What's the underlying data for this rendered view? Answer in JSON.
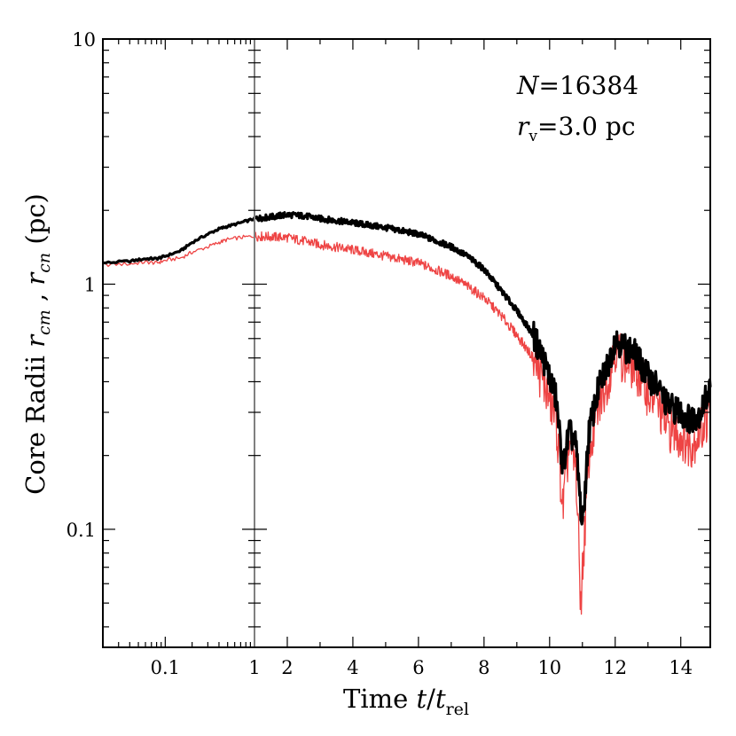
{
  "chart_data": {
    "type": "line",
    "xscale": "piecewise: log for t<1, linear for t>=1",
    "yscale": "log",
    "xlim": [
      0.02,
      14.9
    ],
    "ylim": [
      0.033,
      10
    ],
    "xlabel": {
      "prefix": "Time ",
      "var": "t",
      "slash": "/",
      "var2": "t",
      "sub": "rel"
    },
    "ylabel": {
      "prefix": "Core Radii ",
      "r1": "r",
      "sub1": "cm",
      "sep": " , ",
      "r2": "r",
      "sub2": "cn",
      "suffix": " (pc)"
    },
    "x_tick_labels": [
      "0.1",
      "1",
      "2",
      "4",
      "6",
      "8",
      "10",
      "12",
      "14"
    ],
    "y_tick_labels": [
      "10",
      "1",
      "0.1"
    ],
    "annotation": {
      "n_var": "N",
      "n_eq": "=16384",
      "r_var": "r",
      "r_sub": "v",
      "r_eq": "=3.0 pc"
    },
    "colors": {
      "rcm": "#000000",
      "rcn": "#ee4444",
      "divider": "#808080"
    },
    "series": [
      {
        "name": "r_cm",
        "color": "#000000",
        "x": [
          0.02,
          0.04,
          0.06,
          0.08,
          0.1,
          0.15,
          0.2,
          0.3,
          0.4,
          0.5,
          0.7,
          1.0,
          1.5,
          2.0,
          2.5,
          3.0,
          4.0,
          5.0,
          6.0,
          7.0,
          7.5,
          8.0,
          8.5,
          9.0,
          9.5,
          9.8,
          10.0,
          10.2,
          10.4,
          10.6,
          10.8,
          11.0,
          11.2,
          11.5,
          11.8,
          12.0,
          12.3,
          12.6,
          13.0,
          13.3,
          13.6,
          14.0,
          14.3,
          14.6,
          14.9
        ],
        "y": [
          1.22,
          1.24,
          1.27,
          1.27,
          1.3,
          1.37,
          1.48,
          1.6,
          1.68,
          1.72,
          1.78,
          1.85,
          1.88,
          1.92,
          1.9,
          1.85,
          1.78,
          1.7,
          1.6,
          1.42,
          1.3,
          1.15,
          0.95,
          0.78,
          0.62,
          0.5,
          0.42,
          0.34,
          0.18,
          0.25,
          0.22,
          0.1,
          0.25,
          0.38,
          0.48,
          0.6,
          0.55,
          0.52,
          0.42,
          0.38,
          0.32,
          0.3,
          0.28,
          0.3,
          0.38
        ]
      },
      {
        "name": "r_cn",
        "color": "#ee4444",
        "x": [
          0.02,
          0.04,
          0.06,
          0.08,
          0.1,
          0.15,
          0.2,
          0.3,
          0.4,
          0.5,
          0.7,
          1.0,
          1.5,
          2.0,
          2.5,
          3.0,
          4.0,
          5.0,
          6.0,
          7.0,
          7.5,
          8.0,
          8.5,
          9.0,
          9.5,
          9.8,
          10.0,
          10.2,
          10.4,
          10.6,
          10.8,
          10.95,
          11.2,
          11.5,
          11.8,
          12.0,
          12.3,
          12.6,
          13.0,
          13.3,
          13.6,
          14.0,
          14.3,
          14.6,
          14.9
        ],
        "y": [
          1.2,
          1.21,
          1.23,
          1.22,
          1.25,
          1.28,
          1.35,
          1.42,
          1.48,
          1.52,
          1.55,
          1.57,
          1.56,
          1.55,
          1.5,
          1.45,
          1.38,
          1.3,
          1.22,
          1.08,
          0.98,
          0.88,
          0.75,
          0.62,
          0.5,
          0.4,
          0.34,
          0.28,
          0.12,
          0.22,
          0.18,
          0.05,
          0.2,
          0.32,
          0.42,
          0.55,
          0.48,
          0.46,
          0.36,
          0.32,
          0.26,
          0.24,
          0.22,
          0.25,
          0.3
        ]
      }
    ]
  }
}
